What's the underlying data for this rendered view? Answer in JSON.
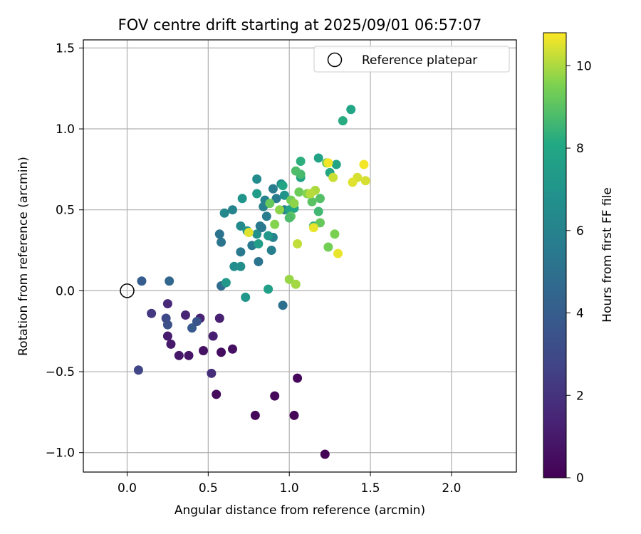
{
  "chart_data": {
    "type": "scatter",
    "title": "FOV centre drift starting at 2025/09/01 06:57:07",
    "xlabel": "Angular distance from reference (arcmin)",
    "ylabel": "Rotation from reference (arcmin)",
    "xlim": [
      -0.27,
      2.4
    ],
    "ylim": [
      -1.12,
      1.55
    ],
    "x_ticks": [
      0.0,
      0.5,
      1.0,
      1.5,
      2.0
    ],
    "x_tick_labels": [
      "0.0",
      "0.5",
      "1.0",
      "1.5",
      "2.0"
    ],
    "y_ticks": [
      -1.0,
      -0.5,
      0.0,
      0.5,
      1.0,
      1.5
    ],
    "y_tick_labels": [
      "−1.0",
      "−0.5",
      "0.0",
      "0.5",
      "1.0",
      "1.5"
    ],
    "grid": true,
    "legend": {
      "placement": "top-right",
      "entries": [
        "Reference platepar"
      ]
    },
    "reference_point": {
      "x": 0.0,
      "y": 0.0
    },
    "colorbar": {
      "label": "Hours from first FF file",
      "min": 0,
      "max": 10.8,
      "ticks": [
        0,
        2,
        4,
        6,
        8,
        10
      ],
      "tick_labels": [
        "0",
        "2",
        "4",
        "6",
        "8",
        "10"
      ],
      "colormap": "viridis"
    },
    "series": [
      {
        "values": [
          [
            1.22,
            -1.01,
            0.1
          ],
          [
            0.79,
            -0.77,
            0.2
          ],
          [
            1.03,
            -0.77,
            0.2
          ],
          [
            0.91,
            -0.65,
            0.3
          ],
          [
            1.05,
            -0.54,
            0.3
          ],
          [
            0.55,
            -0.64,
            0.4
          ],
          [
            0.58,
            -0.38,
            0.5
          ],
          [
            0.65,
            -0.36,
            0.6
          ],
          [
            0.47,
            -0.37,
            0.7
          ],
          [
            0.38,
            -0.4,
            0.8
          ],
          [
            0.32,
            -0.4,
            0.9
          ],
          [
            0.27,
            -0.33,
            1.0
          ],
          [
            0.25,
            -0.28,
            1.1
          ],
          [
            0.53,
            -0.28,
            1.2
          ],
          [
            0.57,
            -0.17,
            1.3
          ],
          [
            0.45,
            -0.17,
            1.4
          ],
          [
            0.36,
            -0.15,
            1.5
          ],
          [
            0.25,
            -0.08,
            1.6
          ],
          [
            0.52,
            -0.51,
            1.8
          ],
          [
            0.15,
            -0.14,
            2.2
          ],
          [
            0.07,
            -0.49,
            2.8
          ],
          [
            0.24,
            -0.17,
            3.0
          ],
          [
            0.25,
            -0.21,
            3.3
          ],
          [
            0.43,
            -0.19,
            3.5
          ],
          [
            0.4,
            -0.23,
            3.8
          ],
          [
            0.09,
            0.06,
            4.0
          ],
          [
            0.26,
            0.06,
            4.5
          ],
          [
            0.58,
            0.03,
            4.8
          ],
          [
            0.96,
            -0.09,
            5.0
          ],
          [
            0.81,
            0.18,
            5.2
          ],
          [
            0.57,
            0.35,
            5.2
          ],
          [
            0.58,
            0.3,
            5.3
          ],
          [
            0.7,
            0.24,
            5.4
          ],
          [
            0.77,
            0.28,
            5.5
          ],
          [
            0.82,
            0.4,
            5.5
          ],
          [
            0.9,
            0.63,
            5.6
          ],
          [
            0.92,
            0.57,
            5.6
          ],
          [
            0.86,
            0.46,
            5.7
          ],
          [
            0.89,
            0.25,
            5.8
          ],
          [
            0.97,
            0.5,
            5.8
          ],
          [
            0.84,
            0.52,
            5.9
          ],
          [
            0.9,
            0.33,
            6.0
          ],
          [
            0.85,
            0.56,
            6.0
          ],
          [
            0.65,
            0.5,
            6.1
          ],
          [
            0.6,
            0.48,
            6.3
          ],
          [
            0.7,
            0.4,
            6.4
          ],
          [
            0.8,
            0.69,
            6.5
          ],
          [
            0.95,
            0.66,
            6.6
          ],
          [
            0.66,
            0.15,
            6.6
          ],
          [
            0.7,
            0.15,
            6.7
          ],
          [
            0.8,
            0.35,
            6.8
          ],
          [
            0.97,
            0.59,
            6.9
          ],
          [
            0.71,
            0.57,
            7.0
          ],
          [
            0.74,
            0.37,
            7.0
          ],
          [
            0.73,
            -0.04,
            7.1
          ],
          [
            0.61,
            0.05,
            7.2
          ],
          [
            0.87,
            0.34,
            7.2
          ],
          [
            0.8,
            0.6,
            7.4
          ],
          [
            0.81,
            0.29,
            7.5
          ],
          [
            0.87,
            0.01,
            7.6
          ],
          [
            1.0,
            0.5,
            7.7
          ],
          [
            1.07,
            0.7,
            7.8
          ],
          [
            1.18,
            0.82,
            7.8
          ],
          [
            1.29,
            0.78,
            7.9
          ],
          [
            1.03,
            0.51,
            8.0
          ],
          [
            1.25,
            0.73,
            8.0
          ],
          [
            1.38,
            1.12,
            8.0
          ],
          [
            1.33,
            1.05,
            8.2
          ],
          [
            1.07,
            0.8,
            8.3
          ],
          [
            1.15,
            0.4,
            8.4
          ],
          [
            1.18,
            0.49,
            8.6
          ],
          [
            1.07,
            0.72,
            8.7
          ],
          [
            1.04,
            0.74,
            8.8
          ],
          [
            1.19,
            0.57,
            8.9
          ],
          [
            1.14,
            0.55,
            9.0
          ],
          [
            1.01,
            0.46,
            9.1
          ],
          [
            1.19,
            0.42,
            9.2
          ],
          [
            1.23,
            0.79,
            9.3
          ],
          [
            1.06,
            0.61,
            9.3
          ],
          [
            1.01,
            0.56,
            9.4
          ],
          [
            1.24,
            0.27,
            9.4
          ],
          [
            1.28,
            0.35,
            9.5
          ],
          [
            1.11,
            0.6,
            9.6
          ],
          [
            0.91,
            0.41,
            9.6
          ],
          [
            0.94,
            0.5,
            9.7
          ],
          [
            1.03,
            0.54,
            9.7
          ],
          [
            1.0,
            0.07,
            9.8
          ],
          [
            1.04,
            0.04,
            9.9
          ],
          [
            1.16,
            0.62,
            10.0
          ],
          [
            1.13,
            0.6,
            10.1
          ],
          [
            1.05,
            0.29,
            10.2
          ],
          [
            1.27,
            0.7,
            10.3
          ],
          [
            1.42,
            0.7,
            10.4
          ],
          [
            1.47,
            0.68,
            10.4
          ],
          [
            1.39,
            0.67,
            10.5
          ],
          [
            1.15,
            0.39,
            10.6
          ],
          [
            1.3,
            0.23,
            10.6
          ],
          [
            1.24,
            0.79,
            10.7
          ],
          [
            1.46,
            0.78,
            10.7
          ],
          [
            0.75,
            0.36,
            10.5
          ],
          [
            0.88,
            0.54,
            9.2
          ],
          [
            1.0,
            0.45,
            8.8
          ],
          [
            0.96,
            0.65,
            7.9
          ],
          [
            0.83,
            0.39,
            5.4
          ]
        ]
      }
    ]
  }
}
